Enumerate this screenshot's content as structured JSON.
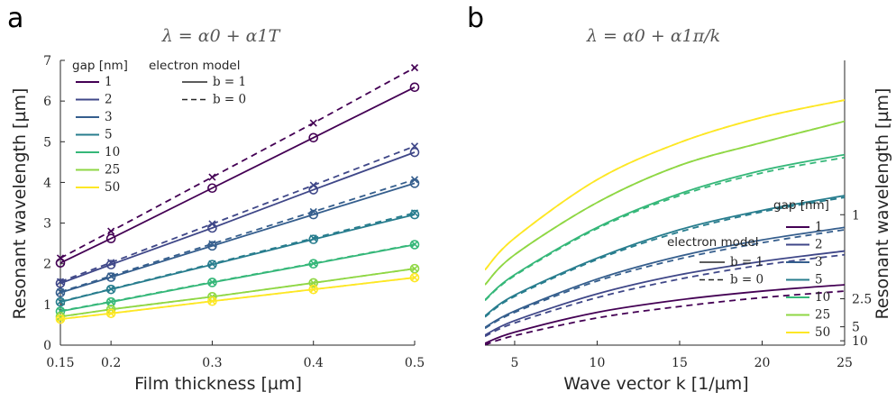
{
  "chart_data": [
    {
      "panel": "a",
      "type": "line",
      "title": "λ = α0 + α1T",
      "xlabel": "Film thickness [µm]",
      "ylabel": "Resonant wavelength [µm]",
      "xlim": [
        0.15,
        0.5
      ],
      "ylim": [
        0,
        7
      ],
      "x_ticks": [
        0.15,
        0.2,
        0.3,
        0.4,
        0.5
      ],
      "y_ticks": [
        0,
        1,
        2,
        3,
        4,
        5,
        6,
        7
      ],
      "grid": false,
      "legend_gap_title": "gap [nm]",
      "legend_model_title": "electron model",
      "model_entries": [
        "b = 1",
        "b = 0"
      ],
      "x": [
        0.15,
        0.2,
        0.3,
        0.4,
        0.5
      ],
      "series": [
        {
          "name": "1",
          "color": "#440154",
          "b1": [
            2.02,
            2.62,
            3.86,
            5.1,
            6.34
          ],
          "b0": [
            2.14,
            2.8,
            4.13,
            5.46,
            6.82
          ]
        },
        {
          "name": "2",
          "color": "#3f4788",
          "b1": [
            1.52,
            1.98,
            2.88,
            3.82,
            4.74
          ],
          "b0": [
            1.56,
            2.03,
            2.98,
            3.93,
            4.89
          ]
        },
        {
          "name": "3",
          "color": "#355e8d",
          "b1": [
            1.29,
            1.67,
            2.44,
            3.21,
            3.98
          ],
          "b0": [
            1.31,
            1.7,
            2.49,
            3.28,
            4.07
          ]
        },
        {
          "name": "5",
          "color": "#287d8e",
          "b1": [
            1.06,
            1.37,
            1.98,
            2.6,
            3.21
          ],
          "b0": [
            1.07,
            1.38,
            2.0,
            2.63,
            3.25
          ]
        },
        {
          "name": "10",
          "color": "#35b779",
          "b1": [
            0.83,
            1.06,
            1.54,
            2.0,
            2.47
          ],
          "b0": [
            0.84,
            1.07,
            1.55,
            2.01,
            2.48
          ]
        },
        {
          "name": "25",
          "color": "#8fd744",
          "b1": [
            0.7,
            0.88,
            1.19,
            1.53,
            1.88
          ],
          "b0": [
            0.7,
            0.88,
            1.19,
            1.53,
            1.88
          ]
        },
        {
          "name": "50",
          "color": "#fde725",
          "b1": [
            0.64,
            0.78,
            1.08,
            1.37,
            1.66
          ],
          "b0": [
            0.64,
            0.78,
            1.08,
            1.37,
            1.66
          ]
        }
      ]
    },
    {
      "panel": "b",
      "type": "line",
      "title": "λ = α0 + α1π/k",
      "xlabel": "Wave vector k [1/µm]",
      "ylabel": "Resonant wavelength [µm]",
      "xlim": [
        3.2,
        25
      ],
      "x_ticks": [
        5,
        10,
        15,
        20,
        25
      ],
      "y_axis_side": "right",
      "y_scale": "reciprocal",
      "y_ticks": [
        1,
        2.5,
        5,
        10
      ],
      "grid": false,
      "legend_gap_title": "gap [nm]",
      "legend_model_title": "electron model",
      "model_entries": [
        "b = 1",
        "b = 0"
      ],
      "x_samples": [
        3.2,
        5,
        10,
        15,
        20,
        25
      ],
      "series": [
        {
          "name": "1",
          "color": "#440154",
          "b1": [
            12.2,
            6.2,
            3.3,
            2.55,
            2.2,
            2.0
          ],
          "b0": [
            14.0,
            7.3,
            3.8,
            2.9,
            2.45,
            2.2
          ]
        },
        {
          "name": "2",
          "color": "#3f4788",
          "b1": [
            7.1,
            4.1,
            2.3,
            1.75,
            1.5,
            1.35
          ],
          "b0": [
            7.6,
            4.4,
            2.45,
            1.85,
            1.56,
            1.4
          ]
        },
        {
          "name": "3",
          "color": "#355e8d",
          "b1": [
            5.1,
            3.2,
            1.85,
            1.42,
            1.22,
            1.1
          ],
          "b0": [
            5.3,
            3.3,
            1.9,
            1.46,
            1.25,
            1.12
          ]
        },
        {
          "name": "5",
          "color": "#287d8e",
          "b1": [
            3.6,
            2.35,
            1.45,
            1.12,
            0.97,
            0.88
          ],
          "b0": [
            3.7,
            2.4,
            1.47,
            1.14,
            0.98,
            0.89
          ]
        },
        {
          "name": "10",
          "color": "#35b779",
          "b1": [
            2.55,
            1.75,
            1.1,
            0.87,
            0.76,
            0.7
          ],
          "b0": [
            2.58,
            1.77,
            1.11,
            0.88,
            0.77,
            0.71
          ]
        },
        {
          "name": "25",
          "color": "#8fd744",
          "b1": [
            2.0,
            1.4,
            0.92,
            0.74,
            0.66,
            0.6
          ],
          "b0": [
            2.0,
            1.4,
            0.92,
            0.74,
            0.66,
            0.6
          ]
        },
        {
          "name": "50",
          "color": "#fde725",
          "b1": [
            1.65,
            1.2,
            0.8,
            0.66,
            0.59,
            0.55
          ],
          "b0": [
            1.65,
            1.2,
            0.8,
            0.66,
            0.59,
            0.55
          ]
        }
      ]
    }
  ]
}
